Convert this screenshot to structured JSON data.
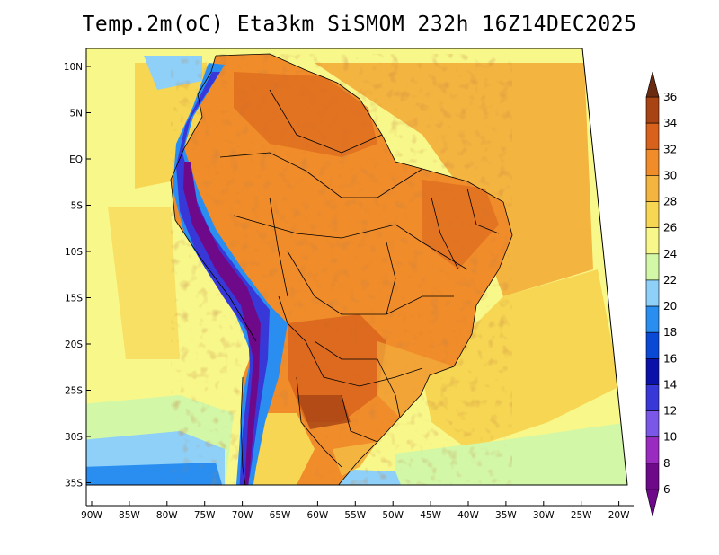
{
  "title": "Temp.2m(oC) Eta3km SiSMOM 232h 16Z14DEC2025",
  "map": {
    "lon_range": [
      -91,
      -19
    ],
    "lat_range": [
      -38,
      12
    ],
    "lon_ticks": [
      "90W",
      "85W",
      "80W",
      "75W",
      "70W",
      "65W",
      "60W",
      "55W",
      "50W",
      "45W",
      "40W",
      "35W",
      "30W",
      "25W",
      "20W"
    ],
    "lat_ticks": [
      "10N",
      "5N",
      "EQ",
      "5S",
      "10S",
      "15S",
      "20S",
      "25S",
      "30S",
      "35S"
    ]
  },
  "colorbar": {
    "unit": "oC",
    "labels": [
      "6",
      "8",
      "10",
      "12",
      "14",
      "16",
      "18",
      "20",
      "22",
      "24",
      "26",
      "28",
      "30",
      "32",
      "34",
      "36"
    ],
    "colors": [
      "#6e0a8a",
      "#9a2bc0",
      "#7a57e6",
      "#3838d8",
      "#0a10a8",
      "#0a48d6",
      "#2a8ef0",
      "#8ed0f8",
      "#d2f7a6",
      "#f8f88a",
      "#f6d652",
      "#f4b440",
      "#f08c2a",
      "#d8621c",
      "#a84414",
      "#6a2a10"
    ]
  }
}
